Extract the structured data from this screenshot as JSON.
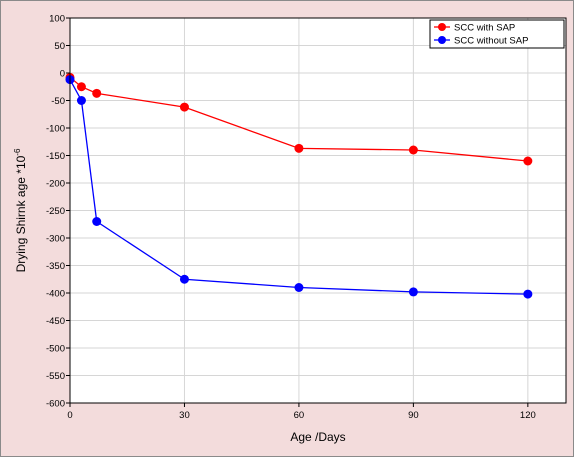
{
  "chart_data": {
    "type": "line",
    "xlabel": "Age /Days",
    "ylabel": "Drying Shirnk age *10",
    "ylabel_superscript": "-6",
    "xlim": [
      0,
      130
    ],
    "ylim": [
      -600,
      100
    ],
    "x_ticks": [
      0,
      30,
      60,
      90,
      120
    ],
    "y_ticks": [
      100,
      50,
      0,
      -50,
      -100,
      -150,
      -200,
      -250,
      -300,
      -350,
      -400,
      -450,
      -500,
      -550,
      -600
    ],
    "grid": true,
    "legend_position": "top-right",
    "series": [
      {
        "name": "SCC with SAP",
        "color": "#ff0000",
        "x": [
          0,
          3,
          7,
          30,
          60,
          90,
          120
        ],
        "y": [
          -8,
          -25,
          -37,
          -62,
          -137,
          -140,
          -160
        ]
      },
      {
        "name": "SCC without SAP",
        "color": "#0000ff",
        "x": [
          0,
          3,
          7,
          30,
          60,
          90,
          120
        ],
        "y": [
          -12,
          -50,
          -270,
          -375,
          -390,
          -398,
          -402
        ]
      }
    ]
  }
}
